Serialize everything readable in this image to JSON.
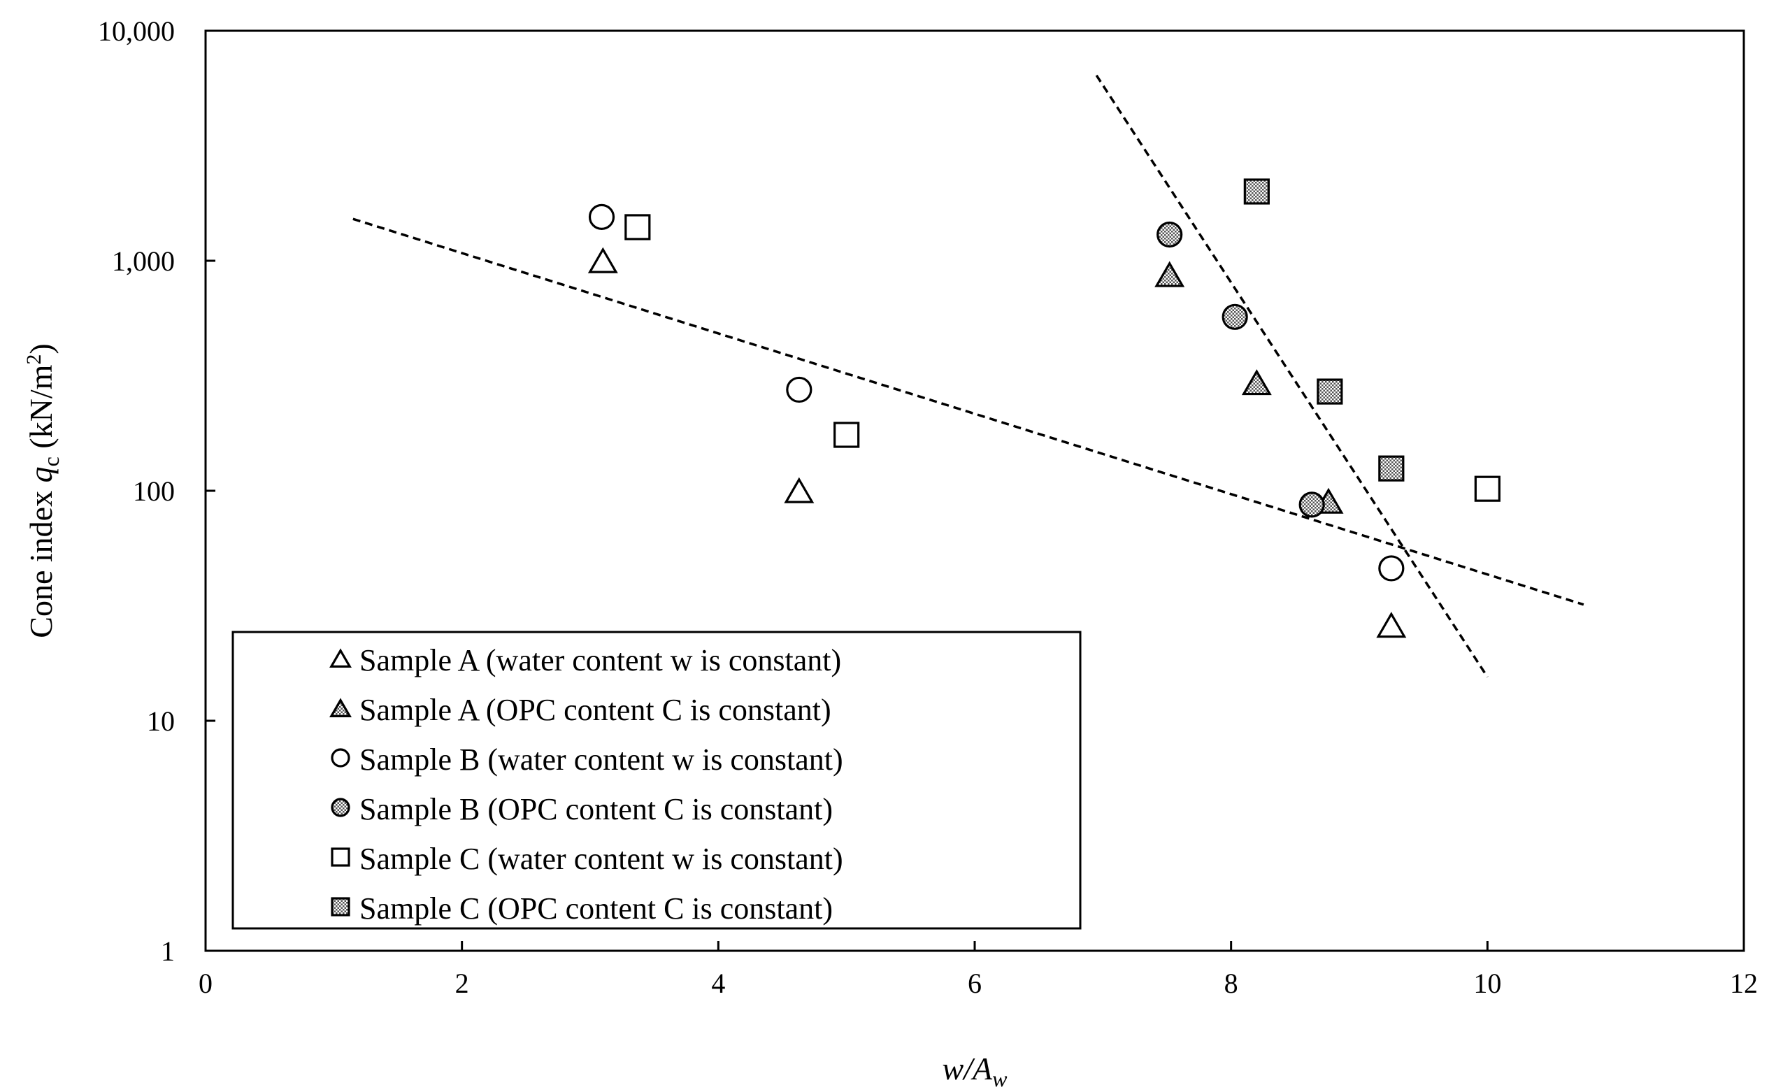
{
  "chart_data": {
    "type": "scatter",
    "xlabel": {
      "main": "w/A",
      "sub": "w"
    },
    "ylabel": {
      "prefix": "Cone index ",
      "symbol": "q",
      "sub": "c",
      "unit_prefix": " (kN/m",
      "sup": "2",
      "unit_suffix": ")"
    },
    "xlim": [
      0,
      12
    ],
    "ylim": [
      1,
      10000
    ],
    "yscale": "log",
    "x_ticks": [
      0,
      2,
      4,
      6,
      8,
      10,
      12
    ],
    "x_tick_labels": [
      "0",
      "2",
      "4",
      "6",
      "8",
      "10",
      "12"
    ],
    "y_ticks": [
      1,
      10,
      100,
      1000,
      10000
    ],
    "y_tick_labels": [
      "1",
      "10",
      "100",
      "1,000",
      "10,000"
    ],
    "grid": false,
    "legend_position": "bottom-left",
    "series": [
      {
        "name": "Sample A (water content w is constant)",
        "marker": "triangle",
        "fill": "none",
        "points": [
          [
            3.1,
            1000
          ],
          [
            4.63,
            100
          ],
          [
            9.25,
            26
          ]
        ]
      },
      {
        "name": "Sample A (OPC content C is constant)",
        "marker": "triangle",
        "fill": "pattern",
        "points": [
          [
            7.52,
            870
          ],
          [
            8.2,
            295
          ],
          [
            8.76,
            90
          ]
        ]
      },
      {
        "name": "Sample B (water content w is constant)",
        "marker": "circle",
        "fill": "none",
        "points": [
          [
            3.09,
            1550
          ],
          [
            4.63,
            275
          ],
          [
            9.25,
            46
          ]
        ]
      },
      {
        "name": "Sample B (OPC content C is constant)",
        "marker": "circle",
        "fill": "pattern",
        "points": [
          [
            7.52,
            1300
          ],
          [
            8.03,
            570
          ],
          [
            8.63,
            87
          ]
        ]
      },
      {
        "name": "Sample C (water content w is constant)",
        "marker": "square",
        "fill": "none",
        "points": [
          [
            3.37,
            1400
          ],
          [
            5.0,
            175
          ],
          [
            10.0,
            102
          ]
        ]
      },
      {
        "name": "Sample C (OPC content C is constant)",
        "marker": "square",
        "fill": "pattern",
        "points": [
          [
            8.2,
            2000
          ],
          [
            8.77,
            270
          ],
          [
            9.25,
            125
          ]
        ]
      }
    ],
    "trend_lines": [
      {
        "style": "dashed",
        "points": [
          [
            1.15,
            1520
          ],
          [
            10.75,
            32
          ]
        ]
      },
      {
        "style": "dashed",
        "points": [
          [
            6.95,
            6400
          ],
          [
            10.0,
            15.5
          ]
        ]
      }
    ]
  }
}
